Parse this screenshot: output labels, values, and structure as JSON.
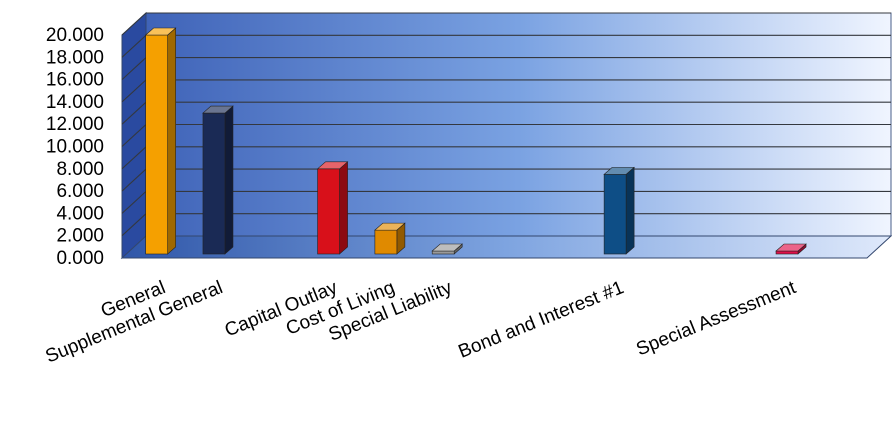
{
  "chart_data": {
    "type": "bar",
    "title": "",
    "xlabel": "",
    "ylabel": "",
    "ylim": [
      0,
      20
    ],
    "y_ticks": [
      "0.000",
      "2.000",
      "4.000",
      "6.000",
      "8.000",
      "10.000",
      "12.000",
      "14.000",
      "16.000",
      "18.000",
      "20.000"
    ],
    "categories": [
      "General",
      "Supplemental General",
      "",
      "Capital Outlay",
      "Cost of Living",
      "Special Liability",
      "",
      "",
      "Bond and Interest #1",
      "",
      "",
      "Special Assessment",
      ""
    ],
    "values": [
      20.0,
      13.0,
      null,
      8.0,
      2.5,
      0.08,
      null,
      null,
      7.5,
      null,
      null,
      0.08,
      null
    ],
    "bar_colors": [
      "#f5a000",
      "#1a2a55",
      null,
      "#d8101a",
      "#e08a00",
      "#9a9a9a",
      null,
      null,
      "#0e4e86",
      null,
      null,
      "#e0104a",
      null
    ],
    "grid": true,
    "legend": "none",
    "colors": {
      "wall_dark": "#3f63b8",
      "wall_light": "#f0f5ff",
      "floor_dark": "#2f56a8",
      "floor_light": "#c9daf6",
      "side_wall": "#2a4aa0"
    }
  }
}
